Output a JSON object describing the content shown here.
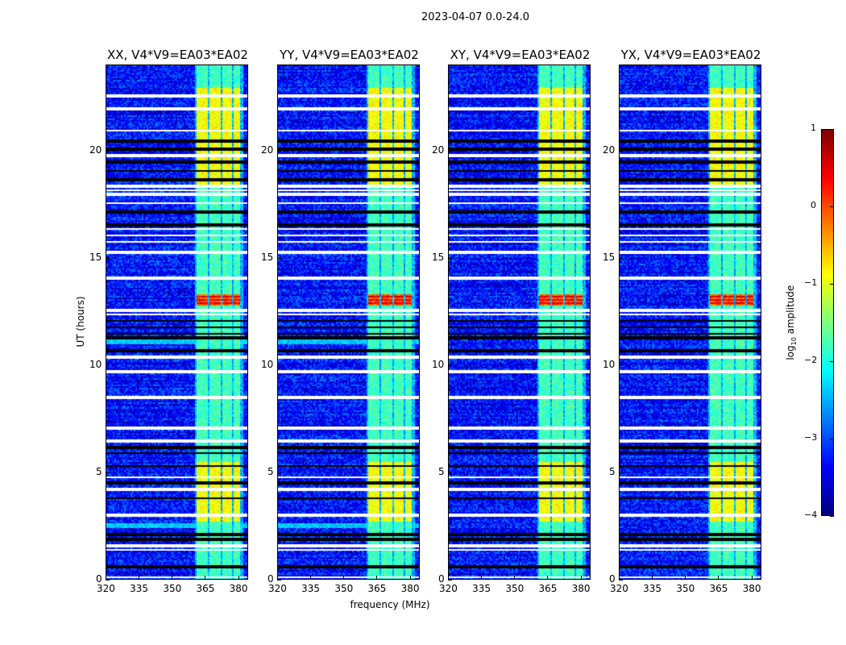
{
  "chart_data": {
    "type": "heatmap",
    "title": "2023-04-07 0.0-24.0",
    "xlabel": "frequency (MHz)",
    "ylabel": "UT (hours)",
    "xlim": [
      320,
      384.5
    ],
    "ylim": [
      0,
      24
    ],
    "xticks": [
      320,
      335,
      350,
      365,
      380
    ],
    "yticks": [
      0,
      5,
      10,
      15,
      20
    ],
    "panels": [
      {
        "title": "XX, V4*V9=EA03*EA02"
      },
      {
        "title": "YY, V4*V9=EA03*EA02"
      },
      {
        "title": "XY, V4*V9=EA03*EA02"
      },
      {
        "title": "YX, V4*V9=EA03*EA02"
      }
    ],
    "colorbar": {
      "label_prefix": "log",
      "label_sub": "10",
      "label_suffix": " amplitude",
      "range": [
        -4,
        1
      ],
      "ticks": [
        1,
        0,
        -1,
        -2,
        -3,
        -4
      ],
      "tick_labels": [
        "1",
        "0",
        "−1",
        "−2",
        "−3",
        "−4"
      ],
      "colormap": "jet"
    },
    "background_log_amplitude": -3.3,
    "rfi_band_mhz": [
      [
        361,
        366
      ],
      [
        367,
        372
      ],
      [
        373,
        377
      ],
      [
        378,
        381
      ]
    ],
    "rfi_band_level": -1.8,
    "bright_hours": [
      [
        18.4,
        23.0
      ],
      [
        2.7,
        5.5
      ]
    ],
    "bright_level": -0.9,
    "strong_hours": [
      12.8,
      13.3
    ],
    "strong_level": 0.2,
    "flagged_hours_white": [
      22.6,
      22.0,
      21.0,
      19.8,
      18.4,
      18.2,
      18.0,
      17.6,
      16.4,
      16.1,
      15.8,
      15.3,
      14.1,
      12.6,
      12.4,
      10.4,
      9.7,
      8.5,
      7.1,
      6.5,
      4.8,
      4.2,
      3.0,
      1.6,
      1.4,
      0.1
    ],
    "zero_hours_black": [
      20.5,
      20.1,
      19.5,
      19.1,
      18.7,
      17.2,
      16.6,
      12.1,
      11.8,
      11.5,
      11.3,
      10.7,
      6.2,
      5.9,
      5.3,
      4.5,
      3.8,
      2.1,
      1.9,
      0.6
    ],
    "stripe_hours_cyan": [
      [
        11.0,
        11.3
      ],
      [
        2.4,
        2.6
      ]
    ]
  }
}
